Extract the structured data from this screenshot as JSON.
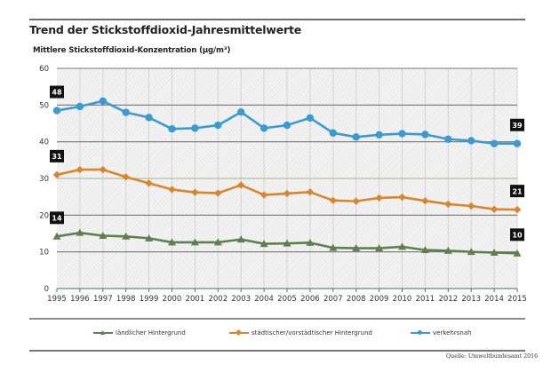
{
  "header": {
    "title": "Trend der Stickstoffdioxid-Jahresmittelwerte",
    "subtitle": "Mittlere Stickstoffdioxid-Konzentration (µg/m³)"
  },
  "source": "Quelle: Umweltbundesamt 2016",
  "chart_data": {
    "type": "line",
    "title": "Trend der Stickstoffdioxid-Jahresmittelwerte",
    "ylabel": "Mittlere Stickstoffdioxid-Konzentration (µg/m³)",
    "xlabel": "",
    "x": [
      "1995",
      "1996",
      "1997",
      "1998",
      "1999",
      "2000",
      "2001",
      "2002",
      "2003",
      "2004",
      "2005",
      "2006",
      "2007",
      "2008",
      "2009",
      "2010",
      "2011",
      "2012",
      "2013",
      "2014",
      "2015"
    ],
    "ylim": [
      0,
      60
    ],
    "yticks": [
      "0",
      "10",
      "20",
      "30",
      "40",
      "50",
      "60"
    ],
    "grid": true,
    "reference_line": {
      "value": 30,
      "color": "#9cb88a"
    },
    "legend_position": "bottom",
    "series": [
      {
        "name": "ländlicher Hintergrund",
        "color": "#5e8050",
        "marker": "triangle",
        "values": [
          14.2,
          15.2,
          14.4,
          14.2,
          13.7,
          12.6,
          12.6,
          12.6,
          13.4,
          12.2,
          12.3,
          12.5,
          11.1,
          11.0,
          11.0,
          11.4,
          10.5,
          10.3,
          10.0,
          9.8,
          9.6
        ],
        "labels": [
          {
            "index": 0,
            "text": "14"
          },
          {
            "index": 20,
            "text": "10"
          }
        ]
      },
      {
        "name": "städtischer/vorstädtischer Hintergrund",
        "color": "#d9862b",
        "marker": "diamond",
        "values": [
          31.0,
          32.4,
          32.4,
          30.4,
          28.7,
          27.0,
          26.2,
          26.0,
          28.2,
          25.5,
          25.9,
          26.3,
          24.0,
          23.8,
          24.7,
          24.9,
          23.9,
          23.0,
          22.5,
          21.6,
          21.5
        ],
        "labels": [
          {
            "index": 0,
            "text": "31"
          },
          {
            "index": 20,
            "text": "21"
          }
        ]
      },
      {
        "name": "verkehrsnah",
        "color": "#3a9bd1",
        "marker": "circle",
        "values": [
          48.5,
          49.6,
          51.1,
          48.0,
          46.6,
          43.5,
          43.7,
          44.5,
          48.1,
          43.7,
          44.5,
          46.5,
          42.4,
          41.3,
          41.9,
          42.2,
          42.0,
          40.7,
          40.3,
          39.5,
          39.5
        ],
        "labels": [
          {
            "index": 0,
            "text": "48"
          },
          {
            "index": 20,
            "text": "39"
          }
        ]
      }
    ]
  }
}
